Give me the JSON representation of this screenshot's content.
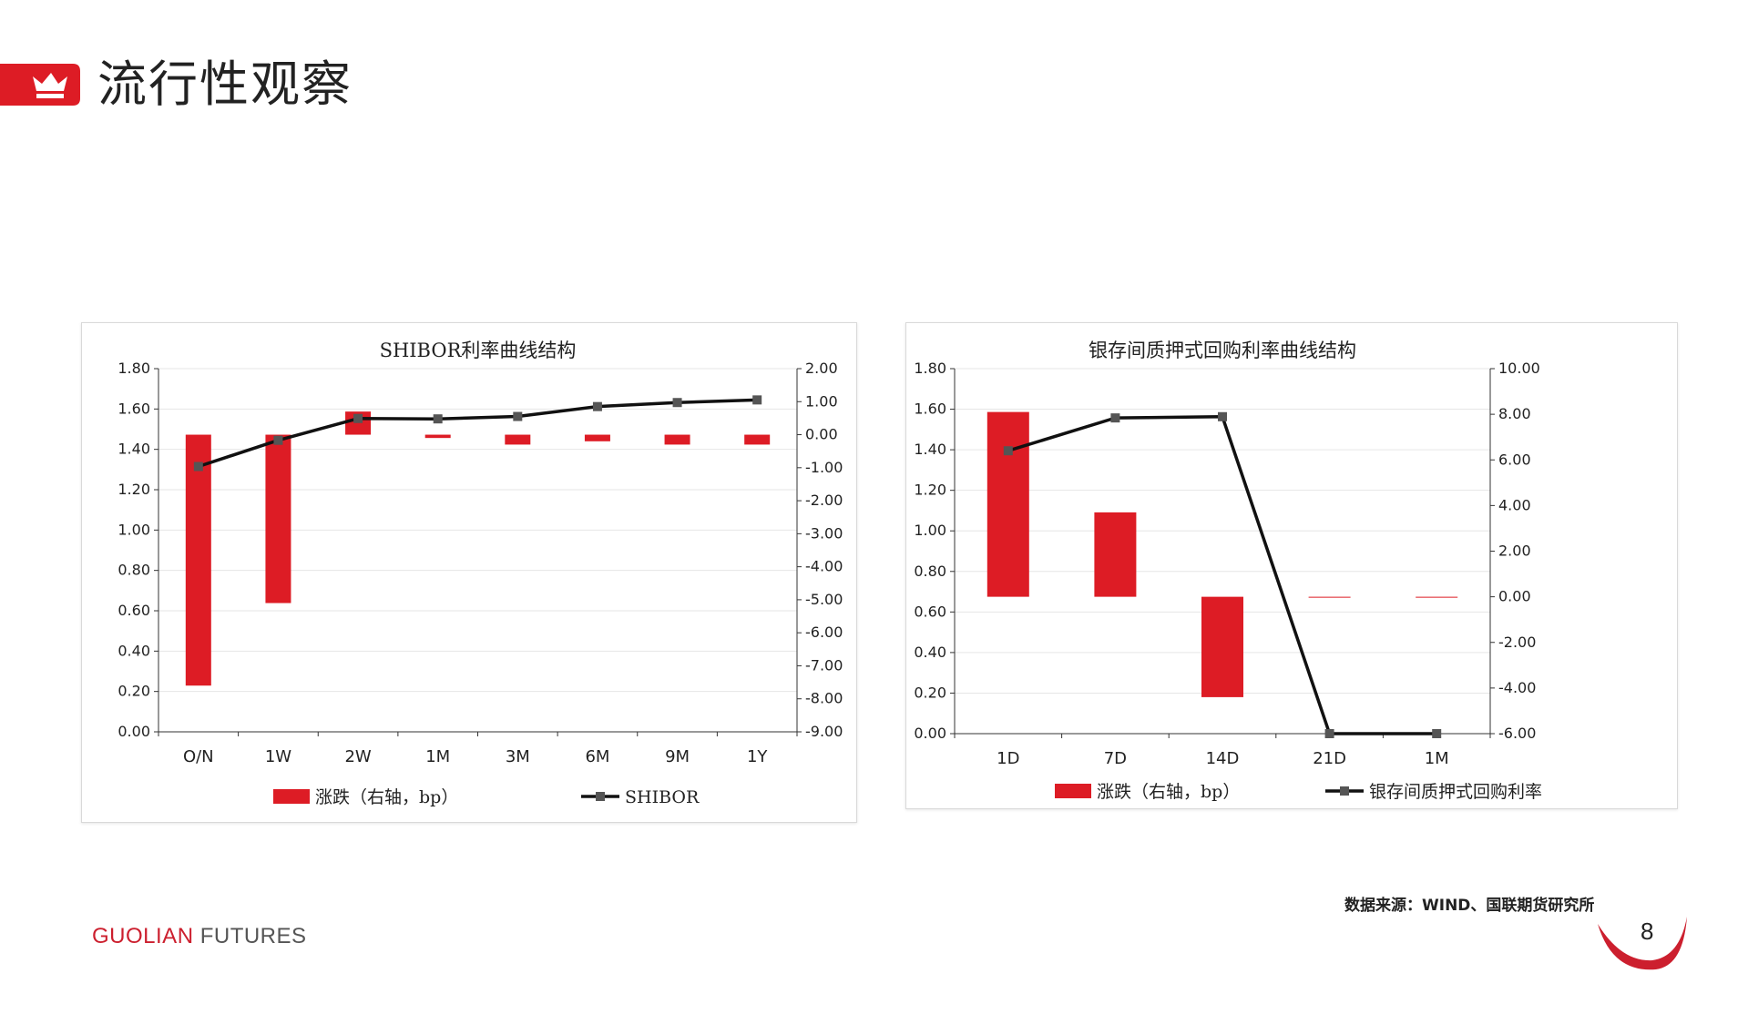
{
  "header": {
    "title": "流行性观察"
  },
  "footer": {
    "source": "数据来源：WIND、国联期货研究所",
    "brand_part1": "GUOLIAN",
    "brand_part2": " FUTURES",
    "page_number": "8"
  },
  "colors": {
    "accent": "#dd1c25",
    "line": "#111111",
    "marker": "#555555",
    "grid": "#e6e6e6"
  },
  "chart_data": [
    {
      "type": "bar",
      "title": "SHIBOR利率曲线结构",
      "categories": [
        "O/N",
        "1W",
        "2W",
        "1M",
        "3M",
        "6M",
        "9M",
        "1Y"
      ],
      "series": [
        {
          "name": "涨跌（右轴，bp）",
          "type": "bar",
          "axis": "right",
          "values": [
            -7.6,
            -5.1,
            0.7,
            -0.1,
            -0.3,
            -0.2,
            -0.3,
            -0.3
          ]
        },
        {
          "name": "SHIBOR",
          "type": "line",
          "axis": "left",
          "values": [
            1.315,
            1.445,
            1.553,
            1.551,
            1.563,
            1.612,
            1.632,
            1.645
          ]
        }
      ],
      "left_axis": {
        "min": 0,
        "max": 1.8,
        "step": 0.2,
        "ticks": [
          "0.00",
          "0.20",
          "0.40",
          "0.60",
          "0.80",
          "1.00",
          "1.20",
          "1.40",
          "1.60",
          "1.80"
        ]
      },
      "right_axis": {
        "min": -9,
        "max": 2,
        "step": 1,
        "ticks": [
          "-9.00",
          "-8.00",
          "-7.00",
          "-6.00",
          "-5.00",
          "-4.00",
          "-3.00",
          "-2.00",
          "-1.00",
          "0.00",
          "1.00",
          "2.00"
        ]
      },
      "grid": true,
      "legend": "bottom"
    },
    {
      "type": "bar",
      "title": "银存间质押式回购利率曲线结构",
      "categories": [
        "1D",
        "7D",
        "14D",
        "21D",
        "1M"
      ],
      "series": [
        {
          "name": "涨跌（右轴，bp）",
          "type": "bar",
          "axis": "right",
          "values": [
            8.1,
            3.7,
            -4.4,
            0.0,
            0.0
          ]
        },
        {
          "name": "银存间质押式回购利率",
          "type": "line",
          "axis": "left",
          "values": [
            1.395,
            1.557,
            1.563,
            0.0,
            0.0
          ]
        }
      ],
      "left_axis": {
        "min": 0,
        "max": 1.8,
        "step": 0.2,
        "ticks": [
          "0.00",
          "0.20",
          "0.40",
          "0.60",
          "0.80",
          "1.00",
          "1.20",
          "1.40",
          "1.60",
          "1.80"
        ]
      },
      "right_axis": {
        "min": -6,
        "max": 10,
        "step": 2,
        "ticks": [
          "-6.00",
          "-4.00",
          "-2.00",
          "0.00",
          "2.00",
          "4.00",
          "6.00",
          "8.00",
          "10.00"
        ]
      },
      "grid": true,
      "legend": "bottom"
    }
  ]
}
